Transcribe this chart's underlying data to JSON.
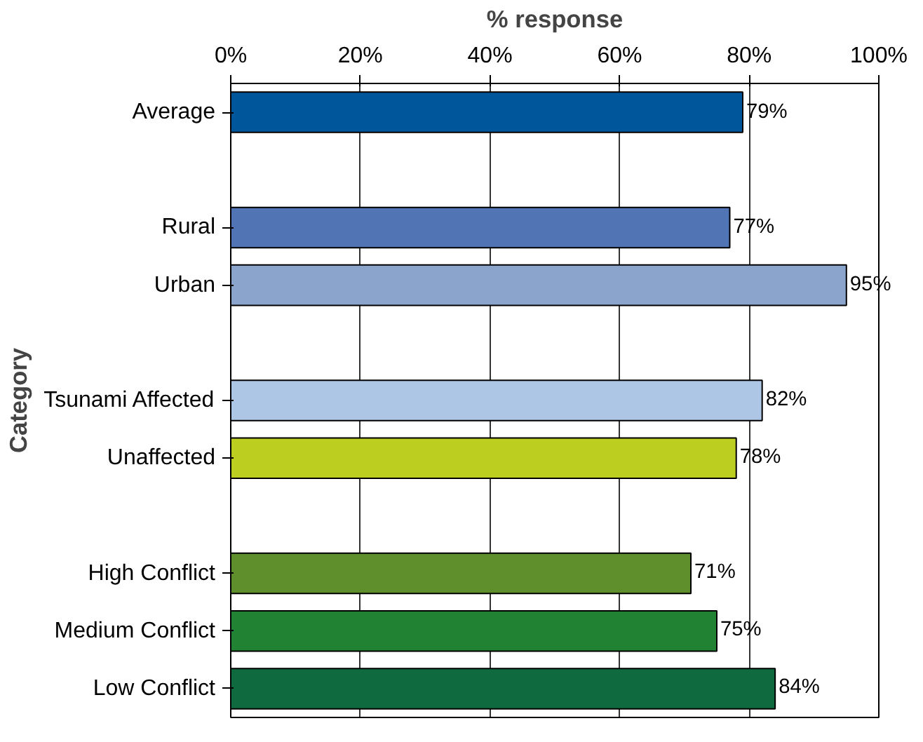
{
  "chart_data": {
    "type": "bar",
    "orientation": "horizontal",
    "xlabel": "% response",
    "ylabel": "Category",
    "categories": [
      "Average",
      null,
      "Rural",
      "Urban",
      null,
      "Tsunami Affected",
      "Unaffected",
      null,
      "High Conflict",
      "Medium Conflict",
      "Low Conflict"
    ],
    "values": [
      79,
      null,
      77,
      95,
      null,
      82,
      78,
      null,
      71,
      75,
      84
    ],
    "colors": [
      "#00569b",
      null,
      "#5174b4",
      "#8aa4cc",
      null,
      "#adc6e5",
      "#bccf20",
      null,
      "#5f8f2c",
      "#218233",
      "#0f6b3f"
    ],
    "value_labels": [
      "79%",
      null,
      "77%",
      "95%",
      null,
      "82%",
      "78%",
      null,
      "71%",
      "75%",
      "84%"
    ],
    "xlim": [
      0,
      100
    ],
    "xticks": [
      {
        "value": 0,
        "label": "0%"
      },
      {
        "value": 20,
        "label": "20%"
      },
      {
        "value": 40,
        "label": "40%"
      },
      {
        "value": 60,
        "label": "60%"
      },
      {
        "value": 80,
        "label": "80%"
      },
      {
        "value": 100,
        "label": "100%"
      }
    ],
    "grid": "x"
  }
}
